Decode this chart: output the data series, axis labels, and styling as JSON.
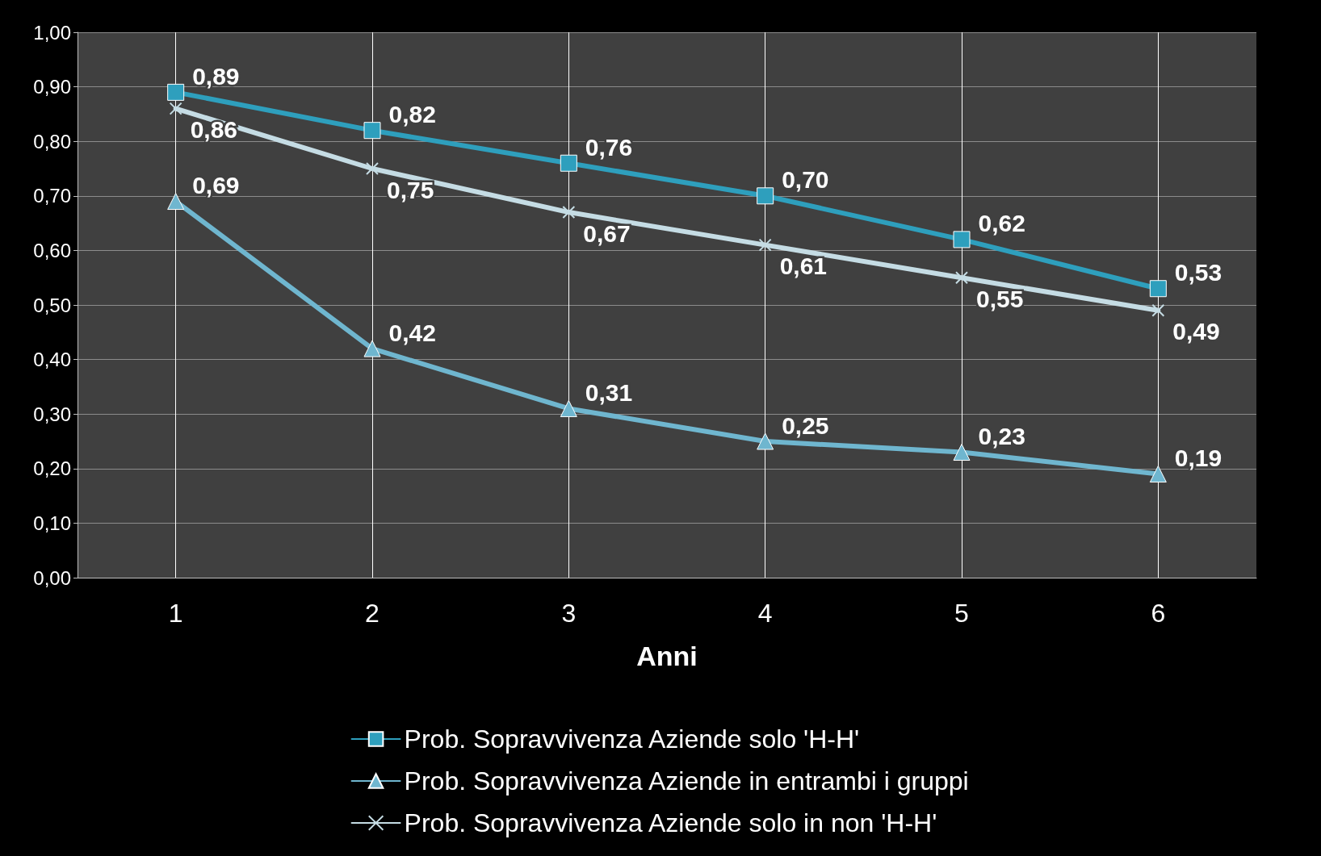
{
  "chart_data": {
    "type": "line",
    "xlabel": "Anni",
    "x": [
      1,
      2,
      3,
      4,
      5,
      6
    ],
    "xlim": [
      0.5,
      6.5
    ],
    "xticks": [
      1,
      2,
      3,
      4,
      5,
      6
    ],
    "ylim": [
      0,
      1
    ],
    "yticks": [
      {
        "value": 0,
        "label": "0,00"
      },
      {
        "value": 0.1,
        "label": "0,10"
      },
      {
        "value": 0.2,
        "label": "0,20"
      },
      {
        "value": 0.3,
        "label": "0,30"
      },
      {
        "value": 0.4,
        "label": "0,40"
      },
      {
        "value": 0.5,
        "label": "0,50"
      },
      {
        "value": 0.6,
        "label": "0,60"
      },
      {
        "value": 0.7,
        "label": "0,70"
      },
      {
        "value": 0.8,
        "label": "0,80"
      },
      {
        "value": 0.9,
        "label": "0,90"
      },
      {
        "value": 1,
        "label": "1,00"
      }
    ],
    "grid": true,
    "legend": "bottom",
    "line_style": "solid",
    "series": [
      {
        "name": "Prob. Sopravvivenza Aziende solo 'H-H'",
        "color": "#2e9fbd",
        "marker": "square",
        "values": [
          0.89,
          0.82,
          0.76,
          0.7,
          0.62,
          0.53
        ],
        "value_labels": [
          "0,89",
          "0,82",
          "0,76",
          "0,70",
          "0,62",
          "0,53"
        ]
      },
      {
        "name": "Prob. Sopravvivenza Aziende in entrambi i gruppi",
        "color": "#6fb6cf",
        "marker": "triangle",
        "values": [
          0.69,
          0.42,
          0.31,
          0.25,
          0.23,
          0.19
        ],
        "value_labels": [
          "0,69",
          "0,42",
          "0,31",
          "0,25",
          "0,23",
          "0,19"
        ]
      },
      {
        "name": "Prob. Sopravvivenza Aziende solo in non 'H-H'",
        "color": "#c5dce4",
        "marker": "cross",
        "values": [
          0.86,
          0.75,
          0.67,
          0.61,
          0.55,
          0.49
        ],
        "value_labels": [
          "0,86",
          "0,75",
          "0,67",
          "0,61",
          "0,55",
          "0,49"
        ]
      }
    ]
  }
}
